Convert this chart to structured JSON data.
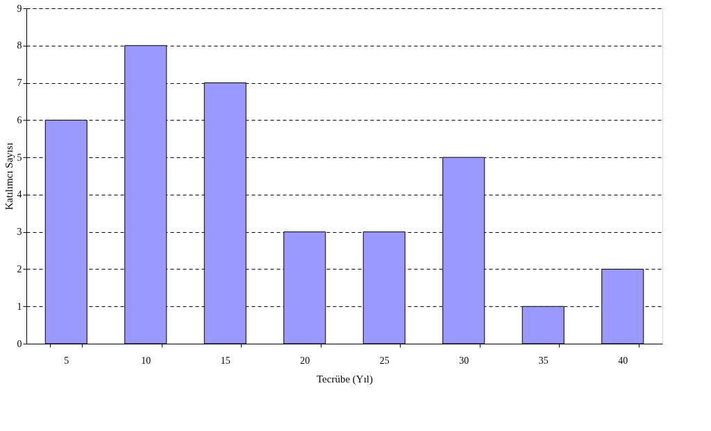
{
  "chart_data": {
    "type": "bar",
    "xlabel": "Tecrübe (Yıl)",
    "ylabel": "Katılımcı Sayısı",
    "categories": [
      "5",
      "10",
      "15",
      "20",
      "25",
      "30",
      "35",
      "40"
    ],
    "values": [
      6,
      8,
      7,
      3,
      3,
      5,
      1,
      2
    ],
    "color": "#9999ff",
    "ylim": [
      0,
      9
    ],
    "yticks": [
      0,
      1,
      2,
      3,
      4,
      5,
      6,
      7,
      8,
      9
    ],
    "grid": "y"
  }
}
